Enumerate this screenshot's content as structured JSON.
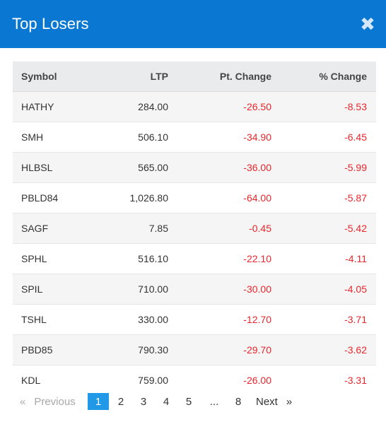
{
  "modal": {
    "title": "Top Losers",
    "close_glyph": "✖"
  },
  "table": {
    "headers": {
      "symbol": "Symbol",
      "ltp": "LTP",
      "pt_change": "Pt. Change",
      "pct_change": "% Change"
    },
    "rows": [
      {
        "symbol": "HATHY",
        "ltp": "284.00",
        "pt_change": "-26.50",
        "pct_change": "-8.53"
      },
      {
        "symbol": "SMH",
        "ltp": "506.10",
        "pt_change": "-34.90",
        "pct_change": "-6.45"
      },
      {
        "symbol": "HLBSL",
        "ltp": "565.00",
        "pt_change": "-36.00",
        "pct_change": "-5.99"
      },
      {
        "symbol": "PBLD84",
        "ltp": "1,026.80",
        "pt_change": "-64.00",
        "pct_change": "-5.87"
      },
      {
        "symbol": "SAGF",
        "ltp": "7.85",
        "pt_change": "-0.45",
        "pct_change": "-5.42"
      },
      {
        "symbol": "SPHL",
        "ltp": "516.10",
        "pt_change": "-22.10",
        "pct_change": "-4.11"
      },
      {
        "symbol": "SPIL",
        "ltp": "710.00",
        "pt_change": "-30.00",
        "pct_change": "-4.05"
      },
      {
        "symbol": "TSHL",
        "ltp": "330.00",
        "pt_change": "-12.70",
        "pct_change": "-3.71"
      },
      {
        "symbol": "PBD85",
        "ltp": "790.30",
        "pt_change": "-29.70",
        "pct_change": "-3.62"
      },
      {
        "symbol": "KDL",
        "ltp": "759.00",
        "pt_change": "-26.00",
        "pct_change": "-3.31"
      }
    ]
  },
  "pagination": {
    "prev_arrow": "«",
    "prev_label": "Previous",
    "pages": [
      "1",
      "2",
      "3",
      "4",
      "5"
    ],
    "ellipsis": "...",
    "last_page": "8",
    "next_label": "Next",
    "next_arrow": "»",
    "active_page": "1"
  },
  "colors": {
    "header_bg": "#0a78d2",
    "negative": "#e8262b",
    "active_page": "#2299e6"
  }
}
